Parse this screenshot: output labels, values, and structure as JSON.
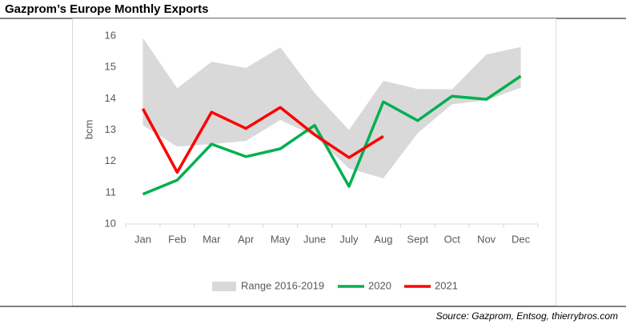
{
  "chart_data": {
    "type": "line",
    "title": "Gazprom’s Europe Monthly Exports",
    "y_label": "bcm",
    "source": "Source: Gazprom, Entsog, thierrybros.com",
    "categories": [
      "Jan",
      "Feb",
      "Mar",
      "Apr",
      "May",
      "June",
      "July",
      "Aug",
      "Sept",
      "Oct",
      "Nov",
      "Dec"
    ],
    "ylim": [
      10,
      16
    ],
    "yticks": [
      10,
      11,
      12,
      13,
      14,
      15,
      16
    ],
    "grid": false,
    "legend": "bottom",
    "range": {
      "name": "Range 2016-2019",
      "color": "#d9d9d9",
      "upper": [
        15.94,
        14.33,
        15.18,
        14.98,
        15.64,
        14.18,
        13.0,
        14.57,
        14.31,
        14.3,
        15.41,
        15.65
      ],
      "lower": [
        13.15,
        12.47,
        12.55,
        12.65,
        13.32,
        12.8,
        11.77,
        11.46,
        12.9,
        13.82,
        13.95,
        14.35
      ]
    },
    "series": [
      {
        "name": "2020",
        "color": "#00b050",
        "values": [
          10.95,
          11.4,
          12.55,
          12.15,
          12.4,
          13.15,
          11.2,
          13.9,
          13.3,
          14.08,
          13.98,
          14.72
        ]
      },
      {
        "name": "2021",
        "color": "#ff0000",
        "values": [
          13.68,
          11.65,
          13.57,
          13.05,
          13.72,
          12.85,
          12.12,
          12.8,
          null,
          null,
          null,
          null
        ]
      }
    ]
  }
}
